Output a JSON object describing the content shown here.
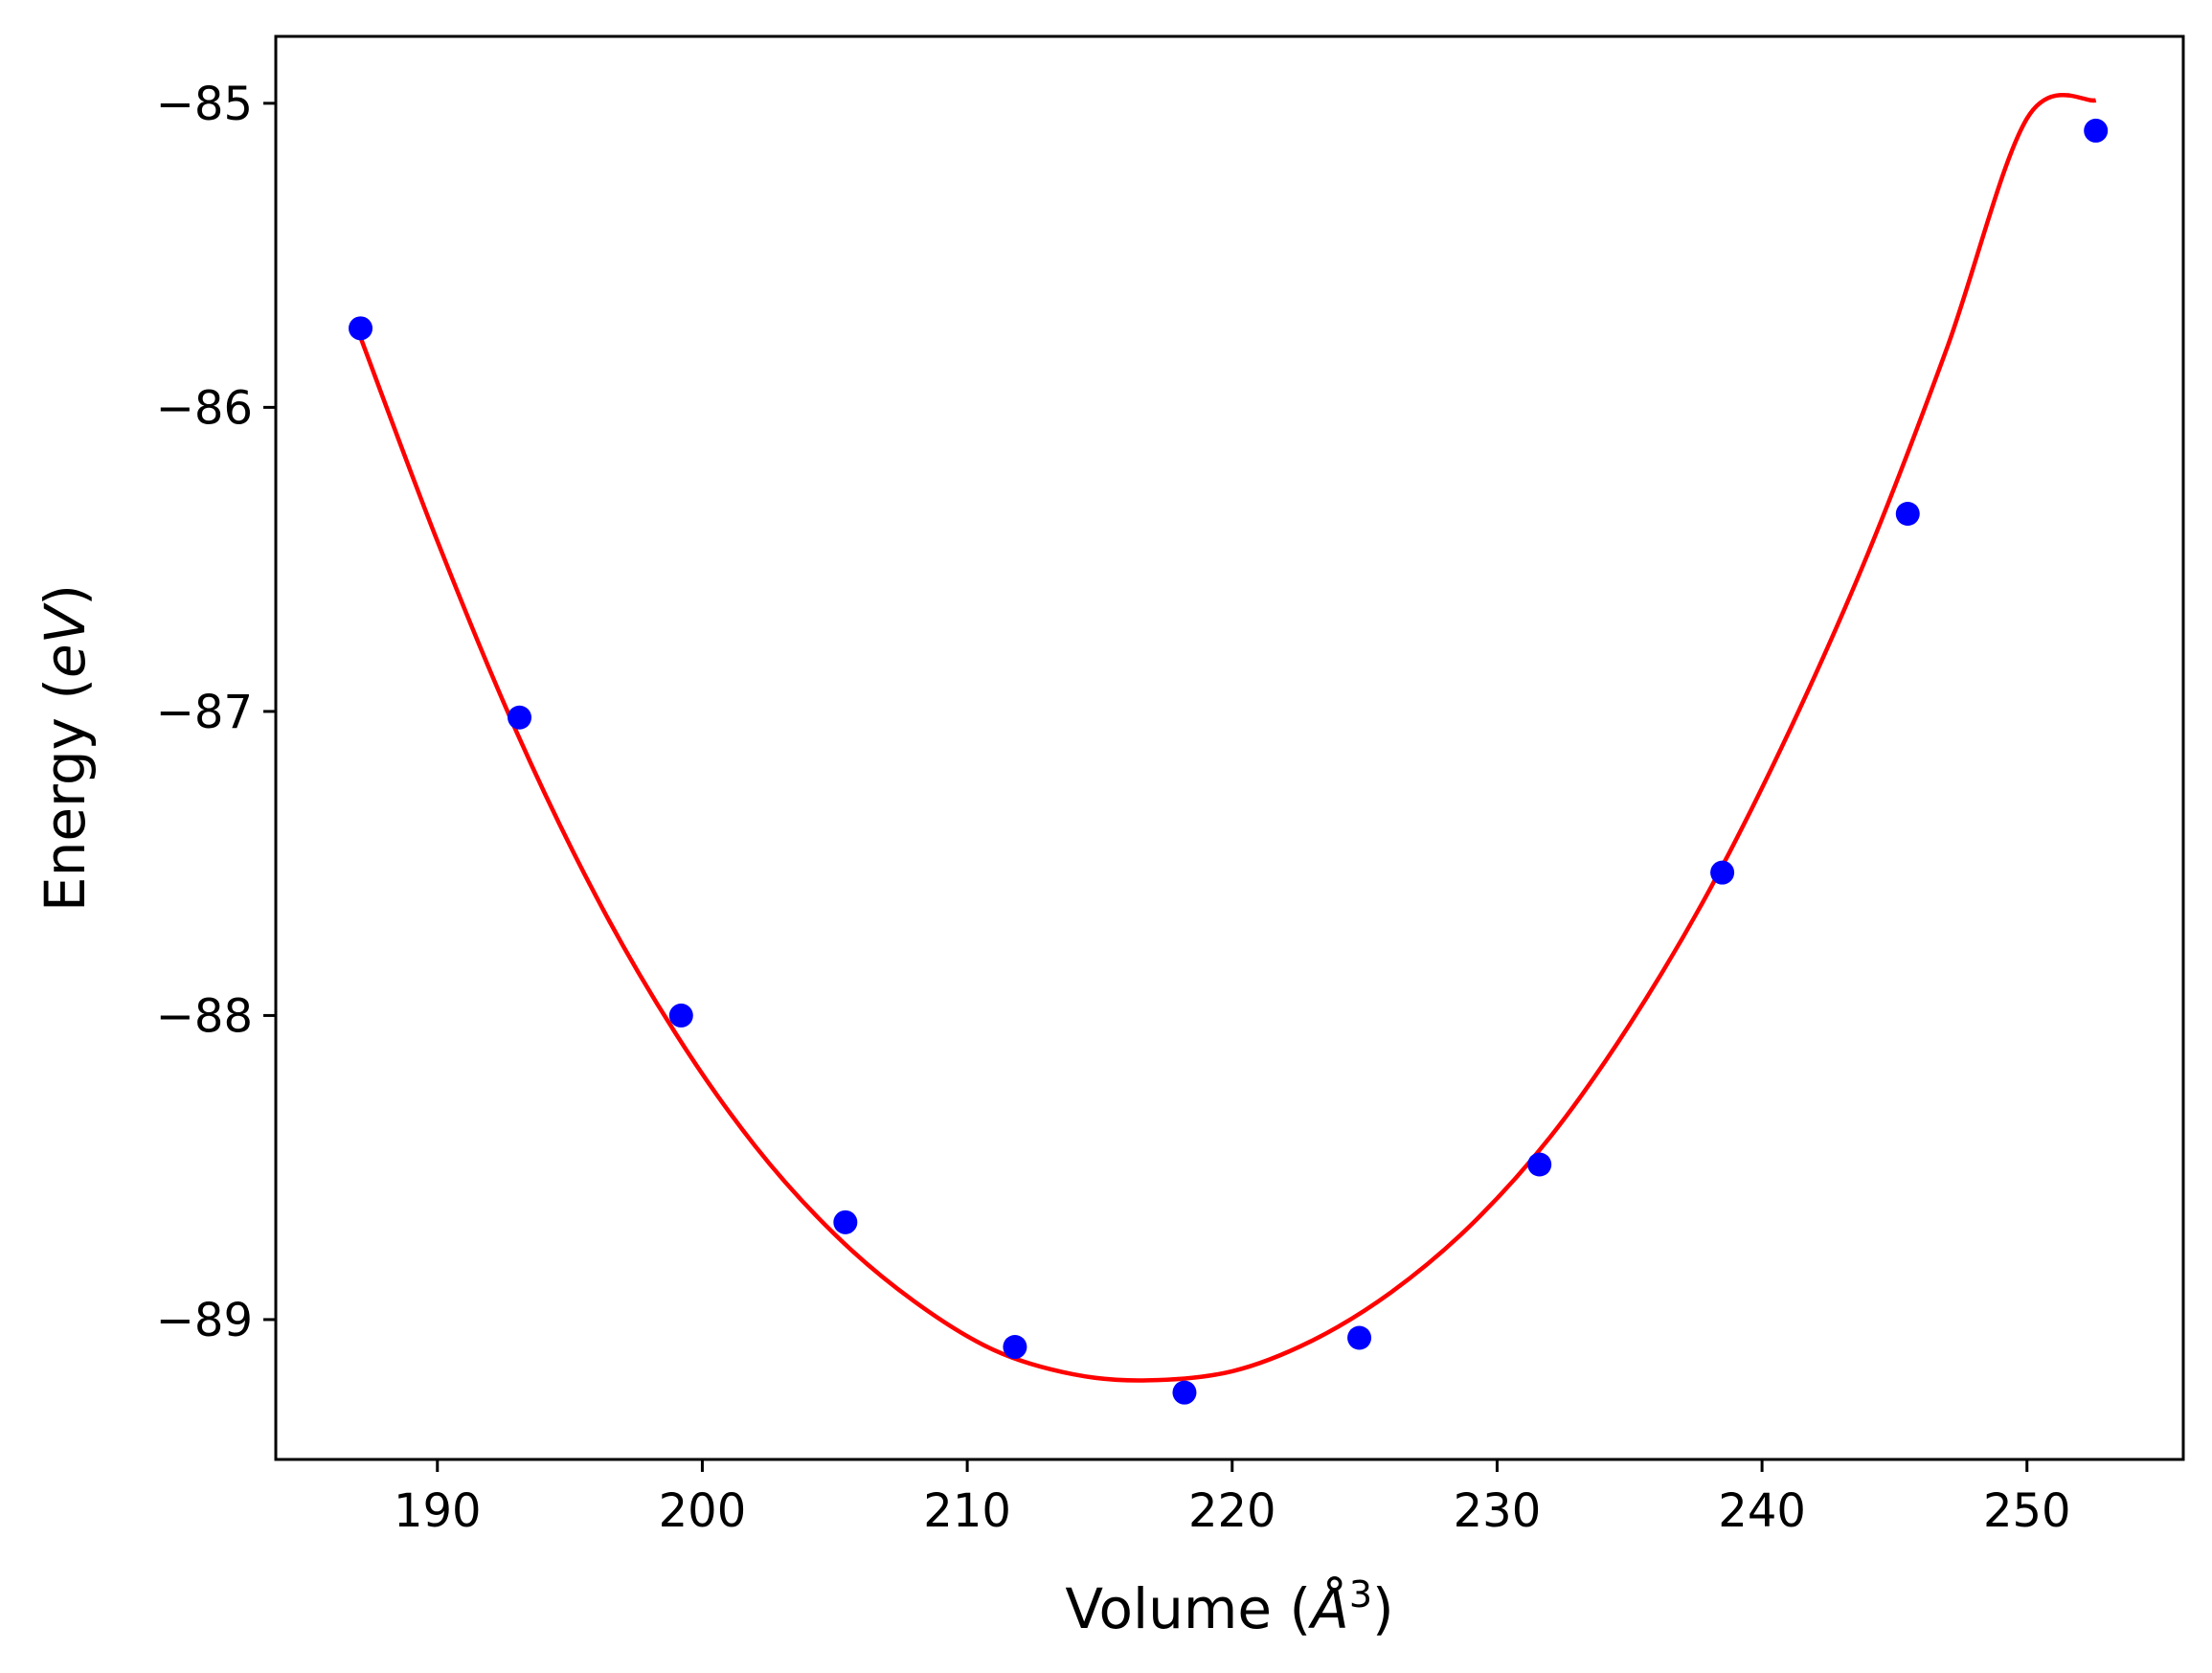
{
  "chart_data": {
    "type": "scatter",
    "title": "",
    "xlabel": {
      "prefix": "Volume (",
      "symbol": "Å",
      "sup": "3",
      "suffix": ")"
    },
    "ylabel": {
      "prefix": "Energy (",
      "symbol": "eV",
      "suffix": ")"
    },
    "xlim": [
      183.9,
      255.9
    ],
    "ylim": [
      -89.46,
      -84.78
    ],
    "xticks": [
      190,
      200,
      210,
      220,
      230,
      240,
      250
    ],
    "xtick_labels": [
      "190",
      "200",
      "210",
      "220",
      "230",
      "240",
      "250"
    ],
    "yticks": [
      -85,
      -86,
      -87,
      -88,
      -89
    ],
    "ytick_labels": [
      "−85",
      "−86",
      "−87",
      "−88",
      "−89"
    ],
    "grid": false,
    "series": [
      {
        "kind": "points",
        "color": "#0000ff",
        "x": [
          187.1,
          193.1,
          199.2,
          205.4,
          211.8,
          218.2,
          224.8,
          231.6,
          238.5,
          245.5,
          252.6
        ],
        "y": [
          -85.74,
          -87.02,
          -88.0,
          -88.68,
          -89.09,
          -89.24,
          -89.06,
          -88.49,
          -87.53,
          -86.35,
          -85.09
        ]
      },
      {
        "kind": "fit-curve",
        "color": "#ff0000",
        "x": [
          187.1,
          190,
          193,
          196,
          199,
          202,
          205,
          208,
          211,
          214,
          216.8,
          220,
          223,
          226,
          229,
          232,
          235,
          238,
          241,
          244,
          247,
          250,
          252.6
        ],
        "y": [
          -85.77,
          -86.44,
          -87.07,
          -87.61,
          -88.06,
          -88.43,
          -88.72,
          -88.94,
          -89.1,
          -89.18,
          -89.2,
          -89.17,
          -89.07,
          -88.91,
          -88.69,
          -88.4,
          -88.03,
          -87.59,
          -87.07,
          -86.48,
          -85.8,
          -85.05,
          -84.99
        ]
      }
    ]
  }
}
